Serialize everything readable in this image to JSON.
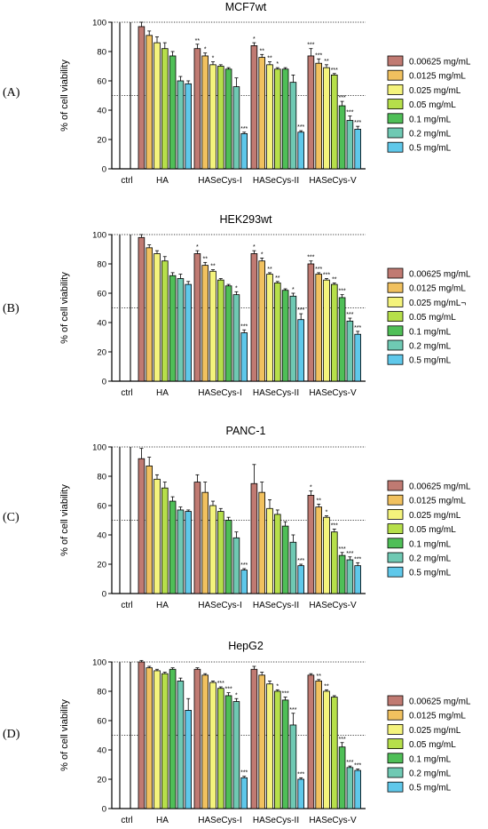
{
  "colors": [
    "#c07a72",
    "#f1c15f",
    "#f4f37c",
    "#b6df4a",
    "#4fbf57",
    "#6fc9b3",
    "#5fc8ea"
  ],
  "colors_note_none": "",
  "chart_data": [
    {
      "type": "bar",
      "panel": "(A)",
      "title": "MCF7wt",
      "ylabel": "% of cell viability",
      "ylim": [
        0,
        100
      ],
      "yticks": [
        0,
        20,
        40,
        60,
        80,
        100
      ],
      "reference_lines": [
        100,
        50
      ],
      "categories": [
        "ctrl",
        "HA",
        "HASeCys-I",
        "HASeCys-II",
        "HASeCys-V"
      ],
      "series": [
        {
          "name": "0.00625 mg/mL",
          "values": [
            100,
            97,
            82,
            84,
            77
          ],
          "errors": [
            0,
            3,
            3,
            2,
            5
          ],
          "sig": [
            "",
            "",
            "**",
            "*",
            "***"
          ]
        },
        {
          "name": "0.0125 mg/mL",
          "values": [
            null,
            91,
            77,
            76,
            72
          ],
          "errors": [
            0,
            3,
            2,
            2,
            3
          ],
          "sig": [
            "",
            "",
            "*",
            "**",
            "***"
          ]
        },
        {
          "name": "0.025 mg/mL",
          "values": [
            null,
            86,
            71,
            71,
            69
          ],
          "errors": [
            0,
            4,
            2,
            2,
            2
          ],
          "sig": [
            "",
            "",
            "*",
            "**",
            "**"
          ]
        },
        {
          "name": "0.05 mg/mL",
          "values": [
            null,
            82,
            70,
            68,
            64
          ],
          "errors": [
            0,
            4,
            1,
            1,
            1
          ],
          "sig": [
            "",
            "",
            "",
            "*",
            "***"
          ]
        },
        {
          "name": "0.1 mg/mL",
          "values": [
            null,
            77,
            68,
            68,
            43
          ],
          "errors": [
            0,
            3,
            1,
            1,
            3
          ],
          "sig": [
            "",
            "",
            "",
            "",
            "***"
          ]
        },
        {
          "name": "0.2 mg/mL",
          "values": [
            null,
            60,
            56,
            59,
            33
          ],
          "errors": [
            0,
            3,
            6,
            5,
            3
          ],
          "sig": [
            "",
            "",
            "",
            "",
            "***"
          ]
        },
        {
          "name": "0.5 mg/mL",
          "values": [
            null,
            58,
            24,
            25,
            27
          ],
          "errors": [
            0,
            2,
            1,
            1,
            2
          ],
          "sig": [
            "",
            "",
            "***",
            "***",
            "***"
          ]
        }
      ]
    },
    {
      "type": "bar",
      "panel": "(B)",
      "title": "HEK293wt",
      "ylabel": "% of cell viability",
      "ylim": [
        0,
        100
      ],
      "yticks": [
        0,
        20,
        40,
        60,
        80,
        100
      ],
      "reference_lines": [
        100,
        50
      ],
      "categories": [
        "ctrl",
        "HA",
        "HASeCys-I",
        "HASeCys-II",
        "HASeCys-V"
      ],
      "series": [
        {
          "name": "0.00625 mg/mL",
          "values": [
            100,
            98,
            87,
            87,
            80
          ],
          "errors": [
            0,
            2,
            2,
            2,
            2
          ],
          "sig": [
            "",
            "",
            "*",
            "*",
            "***"
          ]
        },
        {
          "name": "0.0125 mg/mL",
          "values": [
            null,
            91,
            79,
            82,
            73
          ],
          "errors": [
            0,
            2,
            2,
            2,
            1
          ],
          "sig": [
            "",
            "",
            "**",
            "*",
            "***"
          ]
        },
        {
          "name": "0.025 mg/mL¬",
          "values": [
            null,
            87,
            75,
            73,
            69
          ],
          "errors": [
            0,
            2,
            1,
            1,
            1
          ],
          "sig": [
            "",
            "",
            "**",
            "**",
            "***"
          ]
        },
        {
          "name": "0.05 mg/mL",
          "values": [
            null,
            82,
            69,
            67,
            66
          ],
          "errors": [
            0,
            3,
            1,
            1,
            1
          ],
          "sig": [
            "",
            "",
            "",
            "**",
            "**"
          ]
        },
        {
          "name": "0.1 mg/mL",
          "values": [
            null,
            72,
            65,
            62,
            57
          ],
          "errors": [
            0,
            2,
            1,
            1,
            2
          ],
          "sig": [
            "",
            "",
            "",
            "",
            "***"
          ]
        },
        {
          "name": "0.2 mg/mL",
          "values": [
            null,
            70,
            59,
            58,
            41
          ],
          "errors": [
            0,
            3,
            2,
            2,
            2
          ],
          "sig": [
            "",
            "",
            "*",
            "*",
            "***"
          ]
        },
        {
          "name": "0.5 mg/mL",
          "values": [
            null,
            66,
            33,
            42,
            32
          ],
          "errors": [
            0,
            2,
            2,
            4,
            2
          ],
          "sig": [
            "",
            "",
            "***",
            "***",
            "***"
          ]
        }
      ]
    },
    {
      "type": "bar",
      "panel": "(C)",
      "title": "PANC-1",
      "ylabel": "% of cell viability",
      "ylim": [
        0,
        100
      ],
      "yticks": [
        0,
        20,
        40,
        60,
        80,
        100
      ],
      "reference_lines": [
        100,
        50
      ],
      "categories": [
        "ctrl",
        "HA",
        "HASeCys-I",
        "HASeCys-II",
        "HASeCys-V"
      ],
      "series": [
        {
          "name": "0.00625 mg/mL",
          "values": [
            100,
            92,
            76,
            75,
            67
          ],
          "errors": [
            0,
            7,
            5,
            13,
            3
          ],
          "sig": [
            "",
            "",
            "",
            "",
            "*"
          ]
        },
        {
          "name": "0.0125 mg/mL",
          "values": [
            null,
            87,
            69,
            69,
            59
          ],
          "errors": [
            0,
            6,
            7,
            7,
            2
          ],
          "sig": [
            "",
            "",
            "",
            "",
            "**"
          ]
        },
        {
          "name": "0.025 mg/mL",
          "values": [
            null,
            78,
            60,
            58,
            52
          ],
          "errors": [
            0,
            3,
            3,
            6,
            1
          ],
          "sig": [
            "",
            "",
            "",
            "",
            "*"
          ]
        },
        {
          "name": "0.05 mg/mL",
          "values": [
            null,
            72,
            56,
            54,
            42
          ],
          "errors": [
            0,
            4,
            2,
            3,
            2
          ],
          "sig": [
            "",
            "",
            "",
            "",
            "***"
          ]
        },
        {
          "name": "0.1 mg/mL",
          "values": [
            null,
            63,
            50,
            46,
            26
          ],
          "errors": [
            0,
            3,
            2,
            3,
            2
          ],
          "sig": [
            "",
            "",
            "",
            "",
            "***"
          ]
        },
        {
          "name": "0.2 mg/mL",
          "values": [
            null,
            57,
            38,
            35,
            23
          ],
          "errors": [
            0,
            2,
            4,
            5,
            2
          ],
          "sig": [
            "",
            "",
            "",
            "",
            "***"
          ]
        },
        {
          "name": "0.5 mg/mL",
          "values": [
            null,
            56,
            16,
            19,
            19
          ],
          "errors": [
            0,
            1,
            1,
            1,
            2
          ],
          "sig": [
            "",
            "",
            "***",
            "***",
            "***"
          ]
        }
      ]
    },
    {
      "type": "bar",
      "panel": "(D)",
      "title": "HepG2",
      "ylabel": "% of cell viability",
      "ylim": [
        0,
        100
      ],
      "yticks": [
        0,
        20,
        40,
        60,
        80,
        100
      ],
      "reference_lines": [
        100,
        50
      ],
      "categories": [
        "ctrl",
        "HA",
        "HASeCys-I",
        "HASeCys-II",
        "HASeCys-V"
      ],
      "series": [
        {
          "name": "0.00625 mg/mL",
          "values": [
            100,
            100,
            95,
            95,
            91
          ],
          "errors": [
            0,
            1,
            1,
            2,
            1
          ],
          "sig": [
            "",
            "",
            "",
            "",
            ""
          ]
        },
        {
          "name": "0.0125 mg/mL",
          "values": [
            null,
            96,
            91,
            91,
            87
          ],
          "errors": [
            0,
            1,
            1,
            2,
            1
          ],
          "sig": [
            "",
            "",
            "",
            "",
            "**"
          ]
        },
        {
          "name": "0.025 mg/mL",
          "values": [
            null,
            94,
            86,
            85,
            80
          ],
          "errors": [
            0,
            1,
            1,
            2,
            1
          ],
          "sig": [
            "",
            "",
            "",
            "",
            "**"
          ]
        },
        {
          "name": "0.05 mg/mL",
          "values": [
            null,
            92,
            82,
            80,
            76
          ],
          "errors": [
            0,
            1,
            1,
            1,
            1
          ],
          "sig": [
            "",
            "",
            "***",
            "*",
            ""
          ]
        },
        {
          "name": "0.1 mg/mL",
          "values": [
            null,
            95,
            77,
            74,
            42
          ],
          "errors": [
            0,
            1,
            2,
            2,
            3
          ],
          "sig": [
            "",
            "",
            "***",
            "***",
            "***"
          ]
        },
        {
          "name": "0.2 mg/mL",
          "values": [
            null,
            87,
            73,
            57,
            28
          ],
          "errors": [
            0,
            2,
            2,
            8,
            1
          ],
          "sig": [
            "",
            "",
            "*",
            "***",
            "***"
          ]
        },
        {
          "name": "0.5 mg/mL",
          "values": [
            null,
            67,
            21,
            20,
            26
          ],
          "errors": [
            0,
            8,
            1,
            1,
            1
          ],
          "sig": [
            "",
            "",
            "***",
            "***",
            "***"
          ]
        }
      ]
    }
  ]
}
